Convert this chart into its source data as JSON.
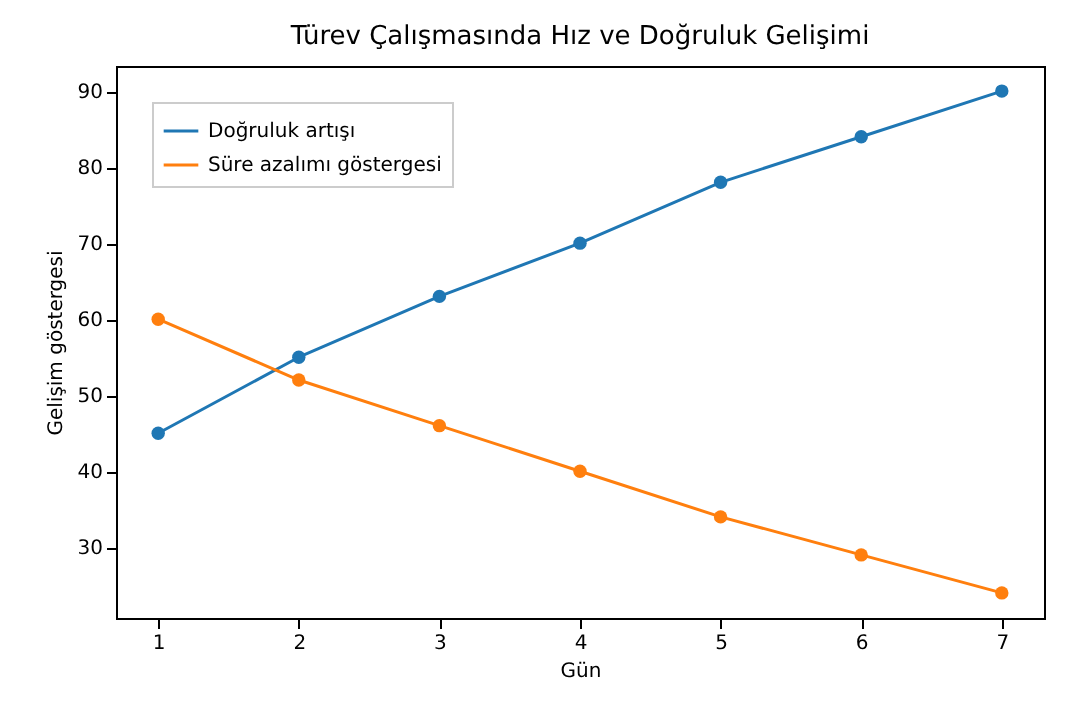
{
  "chart_data": {
    "type": "line",
    "title": "Türev Çalışmasında Hız ve Doğruluk Gelişimi",
    "xlabel": "Gün",
    "ylabel": "Gelişim göstergesi",
    "x": [
      1,
      2,
      3,
      4,
      5,
      6,
      7
    ],
    "series": [
      {
        "name": "Doğruluk artışı",
        "color": "#1f77b4",
        "values": [
          45,
          55,
          63,
          70,
          78,
          84,
          90
        ]
      },
      {
        "name": "Süre azalımı göstergesi",
        "color": "#ff7f0e",
        "values": [
          60,
          52,
          46,
          40,
          34,
          29,
          24
        ]
      }
    ],
    "xlim": [
      0.7,
      7.3
    ],
    "xticks": [
      1,
      2,
      3,
      4,
      5,
      6,
      7
    ],
    "ylim": [
      20.7,
      93.3
    ],
    "yticks": [
      30,
      40,
      50,
      60,
      70,
      80,
      90
    ],
    "grid": false,
    "legend": "top left",
    "marker": "circle",
    "line_style": "solid"
  }
}
